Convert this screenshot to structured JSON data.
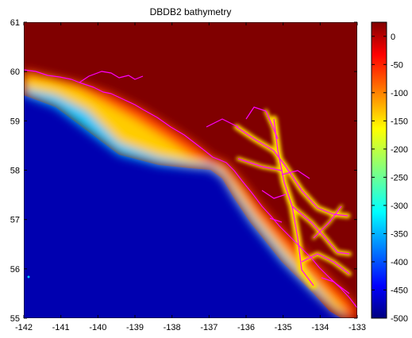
{
  "title": "DBDB2 bathymetry",
  "map": {
    "x_ticks": [
      "-142",
      "-141",
      "-140",
      "-139",
      "-138",
      "-137",
      "-136",
      "-135",
      "-134",
      "-133"
    ],
    "y_ticks": [
      "55",
      "56",
      "57",
      "58",
      "59",
      "60",
      "61"
    ],
    "xlim": [
      -142,
      -133
    ],
    "ylim": [
      55,
      61
    ],
    "coastline_color": "#ff00ff",
    "land_color": "#800000",
    "deep_water_color": "#0000aa"
  },
  "colorbar": {
    "ticks": [
      "0",
      "-50",
      "-100",
      "-150",
      "-200",
      "-250",
      "-300",
      "-350",
      "-400",
      "-450",
      "-500"
    ],
    "range": [
      -500,
      25
    ],
    "colormap": "jet"
  },
  "chart_data": {
    "type": "heatmap",
    "title": "DBDB2 bathymetry",
    "xlabel": "",
    "ylabel": "",
    "xlim": [
      -142,
      -133
    ],
    "ylim": [
      55,
      61
    ],
    "x_tick_labels": [
      "-142",
      "-141",
      "-140",
      "-139",
      "-138",
      "-137",
      "-136",
      "-135",
      "-134",
      "-133"
    ],
    "y_tick_labels": [
      "55",
      "56",
      "57",
      "58",
      "59",
      "60",
      "61"
    ],
    "colorbar_ticks": [
      0,
      -50,
      -100,
      -150,
      -200,
      -250,
      -300,
      -350,
      -400,
      -450,
      -500
    ],
    "colorbar_range": [
      -500,
      25
    ],
    "colormap": "jet",
    "grid": false,
    "legend": "colorbar-right"
  }
}
